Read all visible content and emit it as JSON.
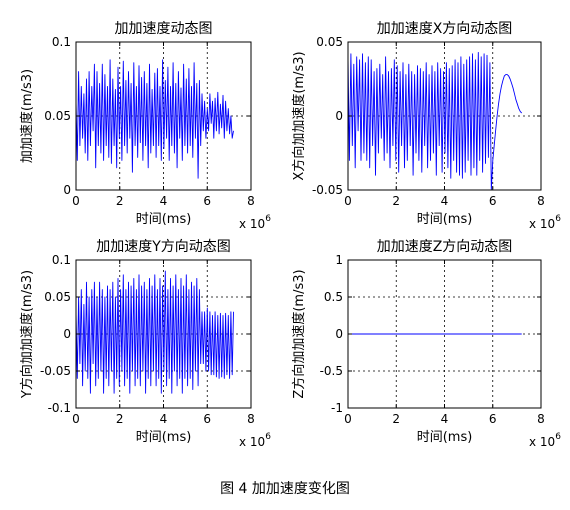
{
  "caption": "图 4 加加速度变化图",
  "chart_data": [
    {
      "type": "line",
      "title": "加加速度动态图",
      "xlabel": "时间(ms)",
      "ylabel": "加加速度(m/s3)",
      "x_multiplier_label": "x 10",
      "x_multiplier_exp": "6",
      "xlim": [
        0,
        8
      ],
      "ylim": [
        0,
        0.1
      ],
      "xticks": [
        0,
        2,
        4,
        6,
        8
      ],
      "yticks": [
        0,
        0.05,
        0.1
      ],
      "ytick_labels": [
        "0",
        "0.05",
        "0.1"
      ],
      "grid": true,
      "color": "#0000ff",
      "x": [
        0,
        0.06,
        0.12,
        0.18,
        0.24,
        0.3,
        0.36,
        0.42,
        0.48,
        0.54,
        0.6,
        0.66,
        0.72,
        0.78,
        0.84,
        0.9,
        0.96,
        1.02,
        1.08,
        1.14,
        1.2,
        1.26,
        1.32,
        1.38,
        1.44,
        1.5,
        1.56,
        1.62,
        1.68,
        1.74,
        1.8,
        1.86,
        1.92,
        1.98,
        2.04,
        2.1,
        2.16,
        2.22,
        2.28,
        2.34,
        2.4,
        2.46,
        2.52,
        2.58,
        2.64,
        2.7,
        2.76,
        2.82,
        2.88,
        2.94,
        3,
        3.06,
        3.12,
        3.18,
        3.24,
        3.3,
        3.36,
        3.42,
        3.48,
        3.54,
        3.6,
        3.66,
        3.72,
        3.78,
        3.84,
        3.9,
        3.96,
        4.02,
        4.08,
        4.14,
        4.2,
        4.26,
        4.32,
        4.38,
        4.44,
        4.5,
        4.56,
        4.62,
        4.68,
        4.74,
        4.8,
        4.86,
        4.92,
        4.98,
        5.04,
        5.1,
        5.16,
        5.22,
        5.28,
        5.34,
        5.4,
        5.46,
        5.52,
        5.58,
        5.64,
        5.7,
        5.76,
        5.82,
        5.88,
        5.94,
        6,
        6.06,
        6.12,
        6.18,
        6.24,
        6.3,
        6.36,
        6.42,
        6.48,
        6.54,
        6.6,
        6.66,
        6.72,
        6.78,
        6.84,
        6.9,
        6.96,
        7.02,
        7.08,
        7.14,
        7.2
      ],
      "y": [
        0.06,
        0.02,
        0.08,
        0.03,
        0.07,
        0.035,
        0.065,
        0.025,
        0.075,
        0.02,
        0.08,
        0.03,
        0.07,
        0.04,
        0.085,
        0.015,
        0.08,
        0.03,
        0.072,
        0.025,
        0.085,
        0.02,
        0.078,
        0.03,
        0.07,
        0.022,
        0.088,
        0.018,
        0.075,
        0.03,
        0.068,
        0.015,
        0.083,
        0.035,
        0.07,
        0.02,
        0.087,
        0.03,
        0.074,
        0.025,
        0.08,
        0.035,
        0.072,
        0.012,
        0.086,
        0.03,
        0.07,
        0.022,
        0.084,
        0.032,
        0.076,
        0.02,
        0.08,
        0.03,
        0.072,
        0.015,
        0.085,
        0.025,
        0.068,
        0.03,
        0.079,
        0.022,
        0.082,
        0.03,
        0.07,
        0.02,
        0.088,
        0.028,
        0.074,
        0.035,
        0.083,
        0.02,
        0.07,
        0.03,
        0.086,
        0.025,
        0.072,
        0.015,
        0.08,
        0.035,
        0.069,
        0.02,
        0.085,
        0.03,
        0.075,
        0.025,
        0.082,
        0.03,
        0.07,
        0.022,
        0.086,
        0.035,
        0.072,
        0.008,
        0.074,
        0.03,
        0.065,
        0.04,
        0.06,
        0.035,
        0.055,
        0.04,
        0.065,
        0.045,
        0.06,
        0.035,
        0.062,
        0.04,
        0.066,
        0.038,
        0.058,
        0.042,
        0.064,
        0.035,
        0.06,
        0.04,
        0.055,
        0.038,
        0.05,
        0.035,
        0.04
      ]
    },
    {
      "type": "line",
      "title": "加加速度X方向动态图",
      "xlabel": "时间(ms)",
      "ylabel": "X方向加加速度(m/s3)",
      "x_multiplier_label": "x 10",
      "x_multiplier_exp": "6",
      "xlim": [
        0,
        8
      ],
      "ylim": [
        -0.05,
        0.05
      ],
      "xticks": [
        0,
        2,
        4,
        6,
        8
      ],
      "yticks": [
        -0.05,
        0,
        0.05
      ],
      "ytick_labels": [
        "-0.05",
        "0",
        "0.05"
      ],
      "grid": true,
      "color": "#0000ff",
      "x": [
        0,
        0.06,
        0.12,
        0.18,
        0.24,
        0.3,
        0.36,
        0.42,
        0.48,
        0.54,
        0.6,
        0.66,
        0.72,
        0.78,
        0.84,
        0.9,
        0.96,
        1.02,
        1.08,
        1.14,
        1.2,
        1.26,
        1.32,
        1.38,
        1.44,
        1.5,
        1.56,
        1.62,
        1.68,
        1.74,
        1.8,
        1.86,
        1.92,
        1.98,
        2.04,
        2.1,
        2.16,
        2.22,
        2.28,
        2.34,
        2.4,
        2.46,
        2.52,
        2.58,
        2.64,
        2.7,
        2.76,
        2.82,
        2.88,
        2.94,
        3,
        3.06,
        3.12,
        3.18,
        3.24,
        3.3,
        3.36,
        3.42,
        3.48,
        3.54,
        3.6,
        3.66,
        3.72,
        3.78,
        3.84,
        3.9,
        3.96,
        4.02,
        4.08,
        4.14,
        4.2,
        4.26,
        4.32,
        4.38,
        4.44,
        4.5,
        4.56,
        4.62,
        4.68,
        4.74,
        4.8,
        4.86,
        4.92,
        4.98,
        5.04,
        5.1,
        5.16,
        5.22,
        5.28,
        5.34,
        5.4,
        5.46,
        5.52,
        5.58,
        5.64,
        5.7,
        5.76,
        5.82,
        5.88,
        5.94,
        6,
        6.06,
        6.12,
        6.18,
        6.24,
        6.3,
        6.36,
        6.42,
        6.48,
        6.54,
        6.6,
        6.66,
        6.72,
        6.78,
        6.84,
        6.9,
        6.96,
        7.02,
        7.08,
        7.14,
        7.2
      ],
      "y": [
        0.04,
        -0.03,
        0.042,
        -0.02,
        0.035,
        -0.035,
        0.04,
        -0.01,
        0.038,
        -0.03,
        0.042,
        -0.025,
        0.036,
        -0.03,
        0.04,
        -0.035,
        0.038,
        -0.02,
        0.03,
        -0.04,
        0.032,
        -0.025,
        0.035,
        -0.015,
        0.028,
        -0.03,
        0.04,
        -0.025,
        0.03,
        -0.035,
        0.032,
        -0.02,
        0.038,
        -0.03,
        0.034,
        -0.038,
        0.03,
        -0.02,
        0.036,
        -0.035,
        0.028,
        -0.03,
        0.035,
        -0.02,
        0.03,
        -0.04,
        0.028,
        -0.025,
        0.034,
        -0.03,
        0.032,
        -0.038,
        0.03,
        -0.02,
        0.036,
        -0.035,
        0.028,
        -0.03,
        0.034,
        -0.025,
        0.03,
        -0.04,
        0.036,
        -0.02,
        0.032,
        -0.038,
        0.03,
        -0.025,
        0.036,
        -0.035,
        0.032,
        -0.042,
        0.034,
        -0.03,
        0.038,
        -0.038,
        0.036,
        -0.04,
        0.04,
        -0.042,
        0.035,
        -0.038,
        0.038,
        -0.03,
        0.04,
        -0.04,
        0.042,
        -0.035,
        0.038,
        -0.04,
        0.043,
        -0.03,
        0.04,
        -0.038,
        0.042,
        -0.032,
        0.041,
        -0.028,
        0.036,
        -0.05,
        -0.03,
        -0.02,
        -0.01,
        0,
        0.008,
        0.015,
        0.02,
        0.024,
        0.027,
        0.028,
        0.028,
        0.027,
        0.025,
        0.022,
        0.019,
        0.015,
        0.011,
        0.008,
        0.005,
        0.003,
        0.002
      ]
    },
    {
      "type": "line",
      "title": "加加速度Y方向动态图",
      "xlabel": "时间(ms)",
      "ylabel": "Y方向加加速度(m/s3)",
      "x_multiplier_label": "x 10",
      "x_multiplier_exp": "6",
      "xlim": [
        0,
        8
      ],
      "ylim": [
        -0.1,
        0.1
      ],
      "xticks": [
        0,
        2,
        4,
        6,
        8
      ],
      "yticks": [
        -0.1,
        -0.05,
        0,
        0.05,
        0.1
      ],
      "ytick_labels": [
        "-0.1",
        "-0.05",
        "0",
        "0.05",
        "0.1"
      ],
      "grid": true,
      "color": "#0000ff",
      "x": [
        0,
        0.06,
        0.12,
        0.18,
        0.24,
        0.3,
        0.36,
        0.42,
        0.48,
        0.54,
        0.6,
        0.66,
        0.72,
        0.78,
        0.84,
        0.9,
        0.96,
        1.02,
        1.08,
        1.14,
        1.2,
        1.26,
        1.32,
        1.38,
        1.44,
        1.5,
        1.56,
        1.62,
        1.68,
        1.74,
        1.8,
        1.86,
        1.92,
        1.98,
        2.04,
        2.1,
        2.16,
        2.22,
        2.28,
        2.34,
        2.4,
        2.46,
        2.52,
        2.58,
        2.64,
        2.7,
        2.76,
        2.82,
        2.88,
        2.94,
        3,
        3.06,
        3.12,
        3.18,
        3.24,
        3.3,
        3.36,
        3.42,
        3.48,
        3.54,
        3.6,
        3.66,
        3.72,
        3.78,
        3.84,
        3.9,
        3.96,
        4.02,
        4.08,
        4.14,
        4.2,
        4.26,
        4.32,
        4.38,
        4.44,
        4.5,
        4.56,
        4.62,
        4.68,
        4.74,
        4.8,
        4.86,
        4.92,
        4.98,
        5.04,
        5.1,
        5.16,
        5.22,
        5.28,
        5.34,
        5.4,
        5.46,
        5.52,
        5.58,
        5.64,
        5.7,
        5.76,
        5.82,
        5.88,
        5.94,
        6,
        6.06,
        6.12,
        6.18,
        6.24,
        6.3,
        6.36,
        6.42,
        6.48,
        6.54,
        6.6,
        6.66,
        6.72,
        6.78,
        6.84,
        6.9,
        6.96,
        7.02,
        7.08,
        7.14,
        7.2
      ],
      "y": [
        0.03,
        -0.06,
        0.05,
        -0.04,
        0.06,
        -0.07,
        0.04,
        -0.05,
        0.07,
        -0.06,
        0.05,
        -0.08,
        0.06,
        -0.04,
        0.07,
        -0.07,
        0.05,
        -0.06,
        0.07,
        -0.05,
        0.06,
        -0.08,
        0.05,
        -0.06,
        0.065,
        -0.07,
        0.06,
        -0.05,
        0.07,
        -0.08,
        0.05,
        -0.06,
        0.075,
        -0.07,
        0.06,
        -0.05,
        0.08,
        -0.07,
        0.06,
        -0.06,
        0.07,
        -0.08,
        0.065,
        -0.05,
        0.075,
        -0.07,
        0.06,
        -0.06,
        0.08,
        -0.07,
        0.065,
        -0.05,
        0.07,
        -0.08,
        0.06,
        -0.06,
        0.075,
        -0.07,
        0.065,
        -0.05,
        0.08,
        -0.07,
        0.06,
        -0.06,
        0.075,
        -0.08,
        0.065,
        -0.05,
        0.085,
        -0.07,
        0.06,
        -0.06,
        0.075,
        -0.08,
        0.065,
        -0.05,
        0.08,
        -0.07,
        0.06,
        -0.06,
        0.075,
        -0.08,
        0.065,
        -0.06,
        0.08,
        -0.07,
        0.06,
        -0.06,
        0.07,
        -0.075,
        0.065,
        -0.05,
        0.075,
        -0.07,
        0.06,
        -0.04,
        0.03,
        -0.04,
        0.03,
        -0.05,
        0.035,
        -0.05,
        0.03,
        -0.055,
        0.025,
        -0.055,
        0.03,
        -0.058,
        0.025,
        -0.06,
        0.028,
        -0.058,
        0.025,
        -0.06,
        0.028,
        -0.055,
        0.025,
        -0.06,
        0.03,
        -0.055,
        0.03
      ]
    },
    {
      "type": "line",
      "title": "加加速度Z方向动态图",
      "xlabel": "时间(ms)",
      "ylabel": "Z方向加加速度(m/s3)",
      "x_multiplier_label": "x 10",
      "x_multiplier_exp": "6",
      "xlim": [
        0,
        8
      ],
      "ylim": [
        -1,
        1
      ],
      "xticks": [
        0,
        2,
        4,
        6,
        8
      ],
      "yticks": [
        -1,
        -0.5,
        0,
        0.5,
        1
      ],
      "ytick_labels": [
        "-1",
        "-0.5",
        "0",
        "0.5",
        "1"
      ],
      "grid": true,
      "color": "#0000ff",
      "x": [
        0,
        7.2
      ],
      "y": [
        0,
        0
      ]
    }
  ]
}
